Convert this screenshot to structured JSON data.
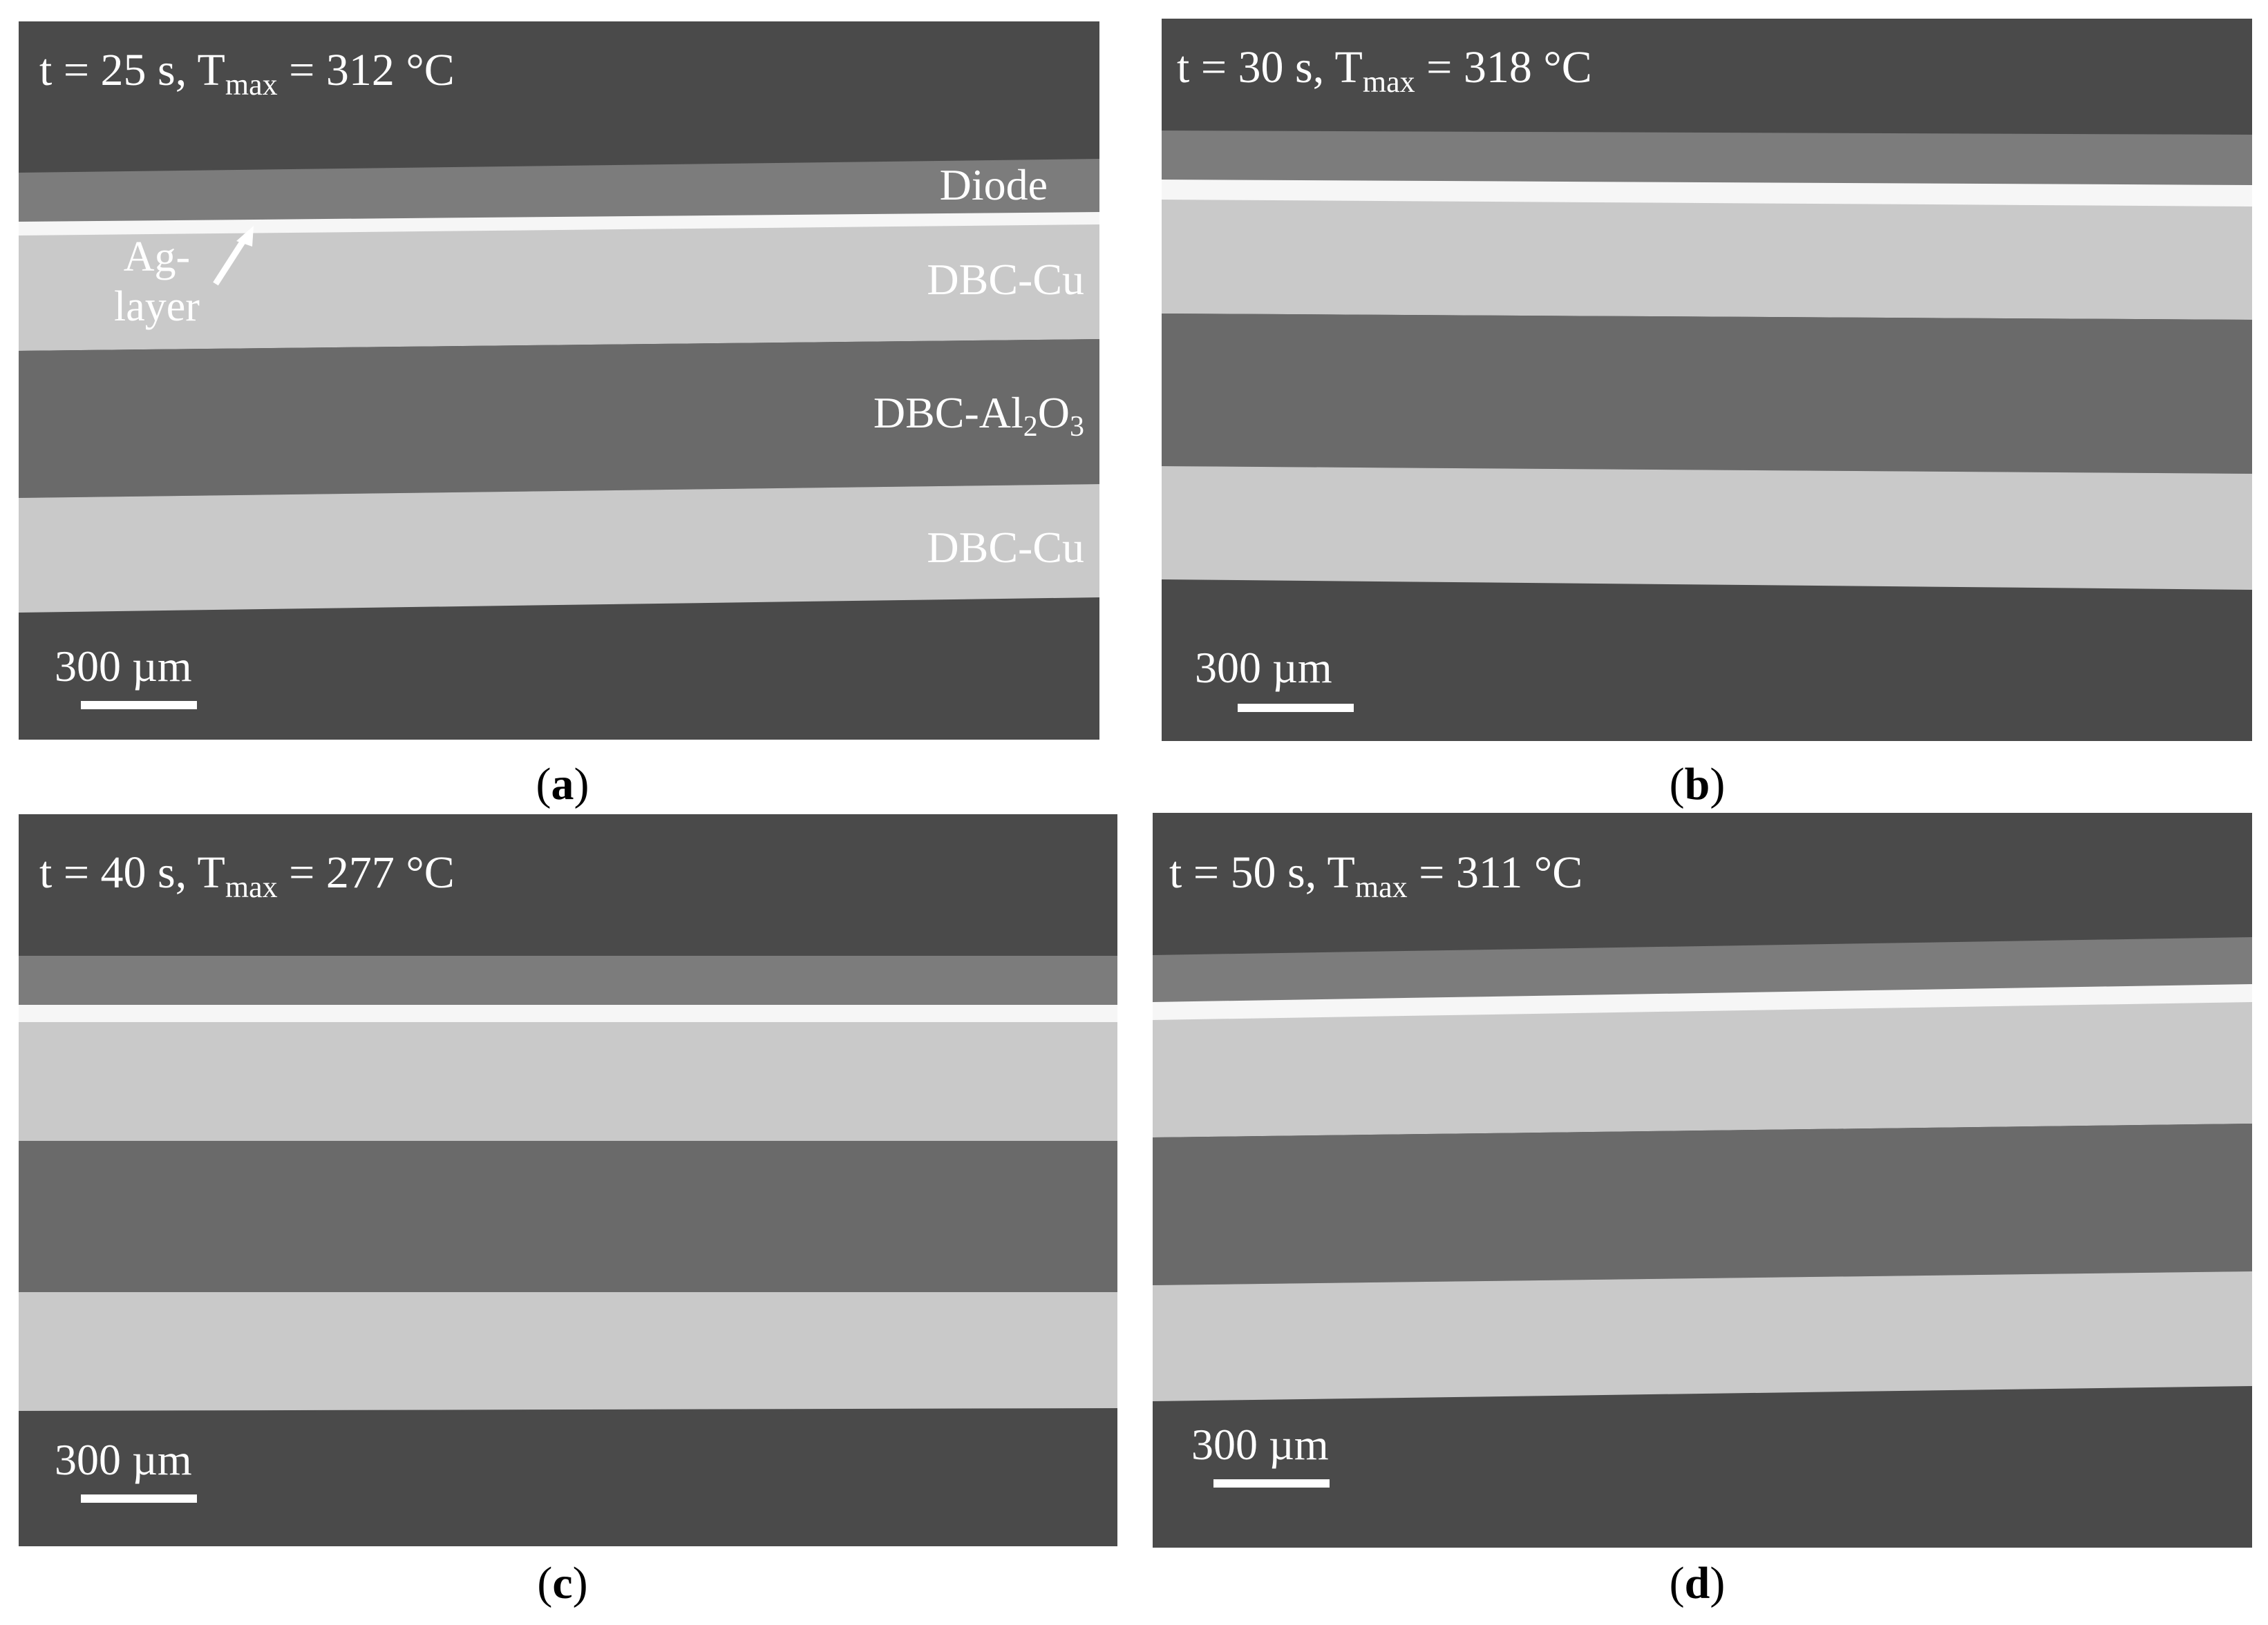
{
  "colors": {
    "background": "#4a4a4a",
    "diode": "#7c7c7c",
    "ag_layer": "#f6f6f6",
    "dbc_cu": "#c9c9c9",
    "dbc_al2o3": "#6a6a6a",
    "text": "#ffffff"
  },
  "panels": [
    {
      "id": "a",
      "title": {
        "pre": "t = 25 s, T",
        "sub": "max",
        "post": " = 312 °C"
      },
      "labels": {
        "diode": "Diode",
        "cu_top": "DBC-Cu",
        "al2o3": {
          "pre": "DBC-Al",
          "sub1": "2",
          "mid": "O",
          "sub2": "3"
        },
        "cu_bottom": "DBC-Cu",
        "ag_layer": {
          "line1": "Ag-",
          "line2": "layer"
        }
      },
      "scale": "300 µm",
      "caption": "a"
    },
    {
      "id": "b",
      "title": {
        "pre": "t = 30 s, T",
        "sub": "max",
        "post": " = 318 °C"
      },
      "scale": "300 µm",
      "caption": "b"
    },
    {
      "id": "c",
      "title": {
        "pre": "t = 40 s, T",
        "sub": "max",
        "post": " = 277 °C"
      },
      "scale": "300 µm",
      "caption": "c"
    },
    {
      "id": "d",
      "title": {
        "pre": "t = 50 s, T",
        "sub": "max",
        "post": " = 311 °C"
      },
      "scale": "300 µm",
      "caption": "d"
    }
  ]
}
